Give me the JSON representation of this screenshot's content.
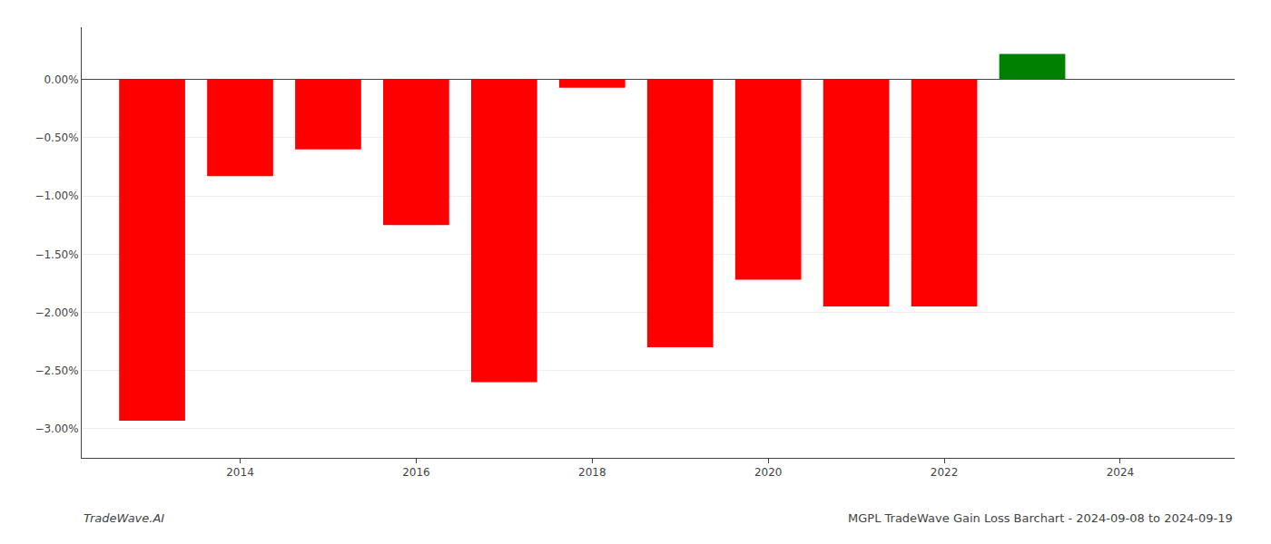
{
  "chart_data": {
    "type": "bar",
    "x": [
      2013,
      2014,
      2015,
      2016,
      2017,
      2018,
      2019,
      2020,
      2021,
      2022,
      2023
    ],
    "values": [
      -2.93,
      -0.83,
      -0.6,
      -1.25,
      -2.6,
      -0.07,
      -2.3,
      -1.72,
      -1.95,
      -1.95,
      0.22
    ],
    "colors": [
      "#ff0000",
      "#ff0000",
      "#ff0000",
      "#ff0000",
      "#ff0000",
      "#ff0000",
      "#ff0000",
      "#ff0000",
      "#ff0000",
      "#ff0000",
      "#008000"
    ],
    "xlim": [
      2012.2,
      2025.3
    ],
    "xticks": [
      2014,
      2016,
      2018,
      2020,
      2022,
      2024
    ],
    "ylim": [
      -3.25,
      0.45
    ],
    "yticks": [
      {
        "value": 0.0,
        "label": "0.00%"
      },
      {
        "value": -0.5,
        "label": "−0.50%"
      },
      {
        "value": -1.0,
        "label": "−1.00%"
      },
      {
        "value": -1.5,
        "label": "−1.50%"
      },
      {
        "value": -2.0,
        "label": "−2.00%"
      },
      {
        "value": -2.5,
        "label": "−2.50%"
      },
      {
        "value": -3.0,
        "label": "−3.00%"
      }
    ],
    "grid": true,
    "annotations": [
      "TradeWave.AI",
      "MGPL TradeWave Gain Loss Barchart - 2024-09-08 to 2024-09-19"
    ]
  }
}
